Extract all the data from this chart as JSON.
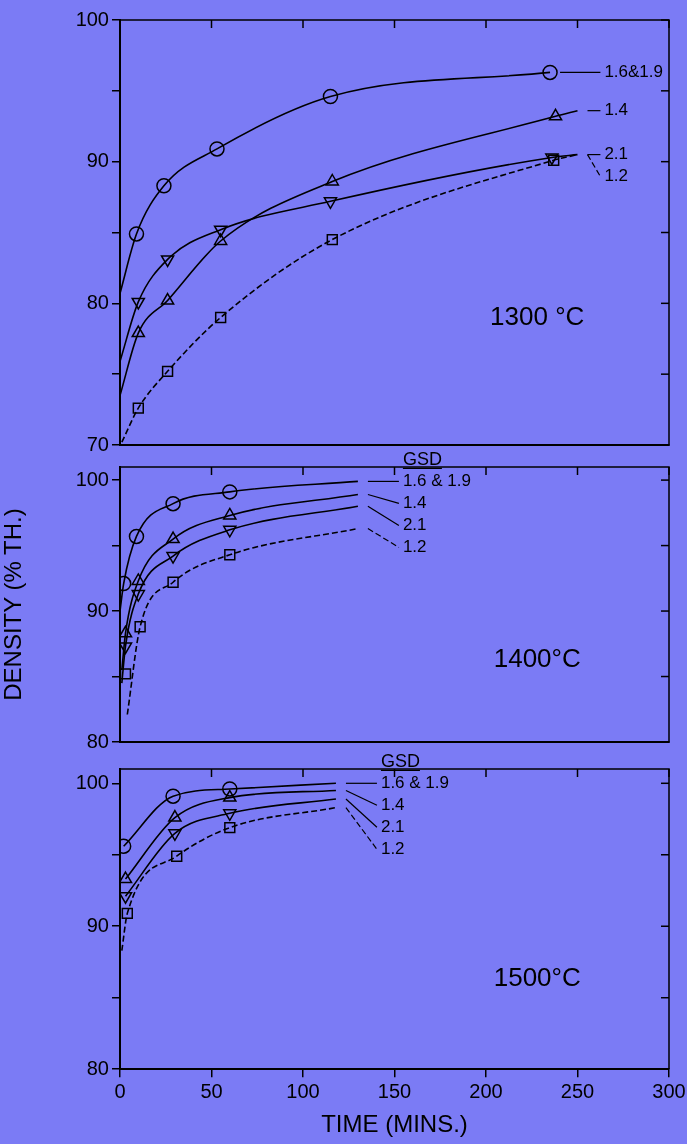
{
  "chart_data": [
    {
      "type": "scatter",
      "xlim": [
        0,
        300
      ],
      "xticks": [
        0,
        50,
        100,
        150,
        200,
        250,
        300
      ],
      "ylim": [
        70,
        100
      ],
      "yticks": [
        70,
        {
          "value": 75,
          "label": null
        },
        80,
        {
          "value": 85,
          "label": null
        },
        90,
        {
          "value": 95,
          "label": null
        },
        100
      ],
      "tick_labels": "y",
      "grid": false,
      "legend": "top right",
      "annotations": [
        "1300 °C"
      ],
      "series": [
        {
          "type": "scatter",
          "marker": "circle",
          "color": "#000000",
          "x": [
            9,
            24,
            53,
            115,
            235
          ],
          "values": [
            84.9,
            88.3,
            90.9,
            94.6,
            96.3
          ]
        },
        {
          "type": "scatter",
          "marker": "triangle",
          "color": "#000000",
          "x": [
            10,
            26,
            55,
            116,
            238
          ],
          "values": [
            77.9,
            80.2,
            84.4,
            88.6,
            93.2
          ]
        },
        {
          "type": "scatter",
          "marker": "triangle-down",
          "color": "#000000",
          "x": [
            10,
            26,
            55,
            115,
            236
          ],
          "values": [
            80.1,
            83.1,
            85.2,
            87.2,
            90.3
          ]
        },
        {
          "type": "scatter",
          "marker": "square",
          "color": "#000000",
          "x": [
            10,
            26,
            55,
            116,
            237
          ],
          "values": [
            72.6,
            75.2,
            79.0,
            84.5,
            90.1
          ]
        },
        {
          "type": "line",
          "name": "1.6&1.9",
          "marker": "none",
          "line_style": "solid",
          "color": "#000000",
          "x": [
            0,
            9,
            24,
            53,
            115,
            235
          ],
          "values": [
            80.7,
            84.9,
            88.3,
            90.9,
            94.6,
            96.3
          ]
        },
        {
          "type": "line",
          "name": "1.4",
          "marker": "none",
          "line_style": "solid",
          "color": "#000000",
          "x": [
            0,
            10,
            26,
            55,
            116,
            238,
            250
          ],
          "values": [
            73.5,
            77.9,
            80.2,
            84.4,
            88.6,
            93.2,
            93.6
          ]
        },
        {
          "type": "line",
          "name": "2.1",
          "marker": "none",
          "line_style": "solid",
          "color": "#000000",
          "x": [
            0,
            10,
            26,
            55,
            115,
            236,
            250
          ],
          "values": [
            75.9,
            80.1,
            83.1,
            85.2,
            87.2,
            90.3,
            90.5
          ]
        },
        {
          "type": "line",
          "name": "1.2",
          "marker": "none",
          "line_style": "dashed",
          "color": "#000000",
          "x": [
            1,
            10,
            26,
            55,
            116,
            237,
            250
          ],
          "values": [
            70.2,
            72.6,
            75.2,
            79.0,
            84.5,
            90.1,
            90.5
          ]
        }
      ]
    },
    {
      "type": "scatter",
      "ylabel": "DENSITY (% TH.)",
      "legend_title": "GSD",
      "xlim": [
        0,
        300
      ],
      "xticks": [
        0,
        50,
        100,
        150,
        200,
        250,
        300
      ],
      "ylim": [
        80,
        101
      ],
      "yticks": [
        80,
        {
          "value": 85,
          "label": null
        },
        90,
        {
          "value": 95,
          "label": null
        },
        100
      ],
      "tick_labels": "y",
      "grid": false,
      "legend": "top",
      "annotations": [
        "1400°C"
      ],
      "series": [
        {
          "type": "scatter",
          "marker": "circle",
          "color": "#000000",
          "x": [
            2,
            9,
            29,
            60
          ],
          "values": [
            92.1,
            95.7,
            98.2,
            99.1
          ]
        },
        {
          "type": "scatter",
          "marker": "triangle",
          "color": "#000000",
          "x": [
            3,
            10,
            29,
            60
          ],
          "values": [
            88.3,
            92.3,
            95.5,
            97.3
          ]
        },
        {
          "type": "scatter",
          "marker": "triangle-down",
          "color": "#000000",
          "x": [
            3,
            10,
            29,
            60
          ],
          "values": [
            87.3,
            91.3,
            94.2,
            96.2
          ]
        },
        {
          "type": "scatter",
          "marker": "square",
          "color": "#000000",
          "x": [
            3,
            11,
            29,
            60
          ],
          "values": [
            85.2,
            88.8,
            92.2,
            94.3
          ]
        },
        {
          "type": "line",
          "name": "1.6 & 1.9",
          "marker": "none",
          "line_style": "solid",
          "color": "#000000",
          "x": [
            0,
            2,
            9,
            29,
            60,
            130
          ],
          "values": [
            90.0,
            92.1,
            95.7,
            98.2,
            99.1,
            99.9
          ]
        },
        {
          "type": "line",
          "name": "1.4",
          "marker": "none",
          "line_style": "solid",
          "color": "#000000",
          "x": [
            1,
            3,
            10,
            29,
            60,
            130
          ],
          "values": [
            85.5,
            88.3,
            92.3,
            95.5,
            97.3,
            98.9
          ]
        },
        {
          "type": "line",
          "name": "2.1",
          "marker": "none",
          "line_style": "solid",
          "color": "#000000",
          "x": [
            1,
            3,
            10,
            29,
            60,
            130
          ],
          "values": [
            84.5,
            87.3,
            91.3,
            94.2,
            96.2,
            98.0
          ]
        },
        {
          "type": "line",
          "name": "1.2",
          "marker": "none",
          "line_style": "dashed",
          "color": "#000000",
          "x": [
            4,
            11,
            29,
            60,
            130
          ],
          "values": [
            82.1,
            88.8,
            92.2,
            94.3,
            96.3
          ]
        }
      ]
    },
    {
      "type": "scatter",
      "xlabel": "TIME (MINS.)",
      "legend_title": "GSD",
      "xlim": [
        0,
        300
      ],
      "xticks": [
        0,
        50,
        100,
        150,
        200,
        250,
        300
      ],
      "ylim": [
        80,
        101
      ],
      "yticks": [
        80,
        {
          "value": 85,
          "label": null
        },
        90,
        {
          "value": 95,
          "label": null
        },
        100
      ],
      "grid": false,
      "legend": "top",
      "annotations": [
        "1500°C"
      ],
      "series": [
        {
          "type": "scatter",
          "marker": "circle",
          "color": "#000000",
          "x": [
            2,
            29,
            60
          ],
          "values": [
            95.6,
            99.1,
            99.6
          ]
        },
        {
          "type": "scatter",
          "marker": "triangle",
          "color": "#000000",
          "x": [
            3,
            30,
            60
          ],
          "values": [
            93.3,
            97.6,
            99.0
          ]
        },
        {
          "type": "scatter",
          "marker": "triangle-down",
          "color": "#000000",
          "x": [
            3,
            30,
            60
          ],
          "values": [
            92.1,
            96.5,
            97.9
          ]
        },
        {
          "type": "scatter",
          "marker": "square",
          "color": "#000000",
          "x": [
            4,
            31,
            60
          ],
          "values": [
            90.9,
            94.9,
            96.9
          ]
        },
        {
          "type": "line",
          "name": "1.6 & 1.9",
          "marker": "none",
          "line_style": "solid",
          "color": "#000000",
          "x": [
            2,
            29,
            60,
            118
          ],
          "values": [
            95.6,
            99.1,
            99.6,
            100.0
          ]
        },
        {
          "type": "line",
          "name": "1.4",
          "marker": "none",
          "line_style": "solid",
          "color": "#000000",
          "x": [
            3,
            30,
            60,
            118
          ],
          "values": [
            93.3,
            97.6,
            99.0,
            99.5
          ]
        },
        {
          "type": "line",
          "name": "2.1",
          "marker": "none",
          "line_style": "solid",
          "color": "#000000",
          "x": [
            3,
            30,
            60,
            118
          ],
          "values": [
            92.1,
            96.5,
            97.9,
            98.9
          ]
        },
        {
          "type": "line",
          "name": "1.2",
          "marker": "none",
          "line_style": "dashed",
          "color": "#000000",
          "x": [
            1,
            4,
            31,
            60,
            118
          ],
          "values": [
            88.3,
            90.9,
            94.9,
            96.9,
            98.3
          ]
        }
      ]
    }
  ]
}
